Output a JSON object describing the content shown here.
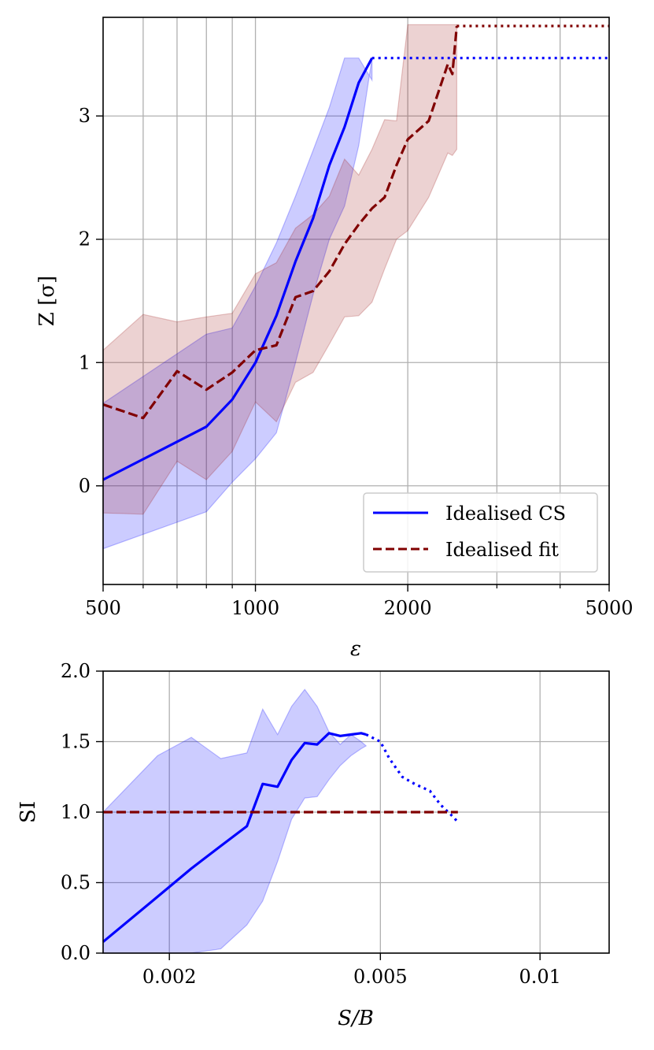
{
  "colors": {
    "cs": "#0000ff",
    "fit": "#800000",
    "cs_band": "#0000ff",
    "fit_band": "#a02020",
    "grid": "#b0b0b0"
  },
  "chart_data": [
    {
      "type": "line",
      "panel": "top",
      "xscale": "log",
      "xlim": [
        500,
        5000
      ],
      "ylim": [
        -0.8,
        3.8
      ],
      "xlabel": "ε",
      "ylabel": "Z [σ]",
      "xticks": [
        500,
        1000,
        2000,
        5000
      ],
      "xtick_labels": [
        "500",
        "1000",
        "2000",
        "5000"
      ],
      "minor_xticks": [
        600,
        700,
        800,
        900,
        3000,
        4000
      ],
      "yticks": [
        0,
        1,
        2,
        3
      ],
      "ytick_labels": [
        "0",
        "1",
        "2",
        "3"
      ],
      "grid": true,
      "legend": {
        "position": "lower-right",
        "entries": [
          "Idealised CS",
          "Idealised fit"
        ]
      },
      "series": [
        {
          "name": "Idealised CS",
          "style": "solid",
          "x": [
            500,
            800,
            900,
            1000,
            1100,
            1200,
            1300,
            1400,
            1500,
            1600,
            1700
          ],
          "y": [
            0.05,
            0.48,
            0.7,
            1.0,
            1.38,
            1.82,
            2.17,
            2.6,
            2.91,
            3.27,
            3.47
          ],
          "band_upper": [
            0.67,
            1.23,
            1.28,
            1.62,
            1.97,
            2.35,
            2.72,
            3.07,
            3.47,
            3.47,
            3.29
          ],
          "band_lower": [
            -0.51,
            -0.21,
            0.03,
            0.22,
            0.43,
            1.0,
            1.55,
            2.0,
            2.27,
            2.76,
            3.47
          ],
          "extension": {
            "style": "dotted",
            "x": [
              1700,
              5000
            ],
            "y": [
              3.47,
              3.47
            ]
          }
        },
        {
          "name": "Idealised fit",
          "style": "dashed",
          "x": [
            500,
            600,
            700,
            800,
            900,
            1000,
            1100,
            1200,
            1300,
            1400,
            1500,
            1600,
            1700,
            1800,
            1900,
            2000,
            2200,
            2400,
            2450,
            2500
          ],
          "y": [
            0.66,
            0.55,
            0.93,
            0.78,
            0.92,
            1.1,
            1.14,
            1.53,
            1.58,
            1.74,
            1.96,
            2.12,
            2.25,
            2.34,
            2.6,
            2.81,
            2.96,
            3.42,
            3.34,
            3.73
          ],
          "band_upper": [
            1.1,
            1.39,
            1.33,
            1.37,
            1.4,
            1.72,
            1.81,
            2.09,
            2.2,
            2.35,
            2.65,
            2.52,
            2.73,
            2.97,
            2.96,
            3.74,
            3.74,
            3.74,
            3.74,
            3.74
          ],
          "band_lower": [
            -0.22,
            -0.23,
            0.2,
            0.05,
            0.28,
            0.68,
            0.52,
            0.84,
            0.92,
            1.15,
            1.37,
            1.38,
            1.49,
            1.76,
            2.0,
            2.07,
            2.34,
            2.7,
            2.68,
            2.73
          ],
          "extension": {
            "style": "dotted",
            "x": [
              2500,
              5000
            ],
            "y": [
              3.73,
              3.73
            ]
          }
        }
      ]
    },
    {
      "type": "line",
      "panel": "bottom",
      "xscale": "log",
      "xlim": [
        0.0015,
        0.0135
      ],
      "ylim": [
        0.0,
        2.0
      ],
      "xlabel": "S/B",
      "ylabel": "SI",
      "xticks": [
        0.002,
        0.005,
        0.01
      ],
      "xtick_labels": [
        "0.002",
        "0.005",
        "0.01"
      ],
      "yticks": [
        0.0,
        0.5,
        1.0,
        1.5,
        2.0
      ],
      "ytick_labels": [
        "0.0",
        "0.5",
        "1.0",
        "1.5",
        "2.0"
      ],
      "grid": true,
      "series": [
        {
          "name": "Idealised CS",
          "style": "solid",
          "x": [
            0.0015,
            0.0019,
            0.0022,
            0.0025,
            0.0028,
            0.003,
            0.0032,
            0.0034,
            0.0036,
            0.0038,
            0.004,
            0.0042,
            0.0044,
            0.0046,
            0.0047
          ],
          "y": [
            0.08,
            0.4,
            0.6,
            0.76,
            0.9,
            1.2,
            1.18,
            1.37,
            1.49,
            1.48,
            1.56,
            1.54,
            1.55,
            1.56,
            1.55
          ],
          "band_upper": [
            1.0,
            1.4,
            1.53,
            1.38,
            1.42,
            1.73,
            1.55,
            1.75,
            1.87,
            1.75,
            1.57,
            1.48,
            1.55,
            1.5,
            1.47
          ],
          "band_lower": [
            0.0,
            0.0,
            0.0,
            0.03,
            0.2,
            0.37,
            0.65,
            0.95,
            1.1,
            1.11,
            1.23,
            1.33,
            1.4,
            1.45,
            1.47
          ],
          "extension": {
            "style": "dotted",
            "x": [
              0.0047,
              0.005,
              0.0052,
              0.0055,
              0.0058,
              0.0062,
              0.0065,
              0.0068,
              0.007
            ],
            "y": [
              1.55,
              1.5,
              1.38,
              1.25,
              1.2,
              1.15,
              1.05,
              0.98,
              0.93
            ]
          }
        },
        {
          "name": "Idealised fit",
          "style": "dashed",
          "x": [
            0.0015,
            0.007
          ],
          "y": [
            1.0,
            1.0
          ]
        }
      ]
    }
  ]
}
